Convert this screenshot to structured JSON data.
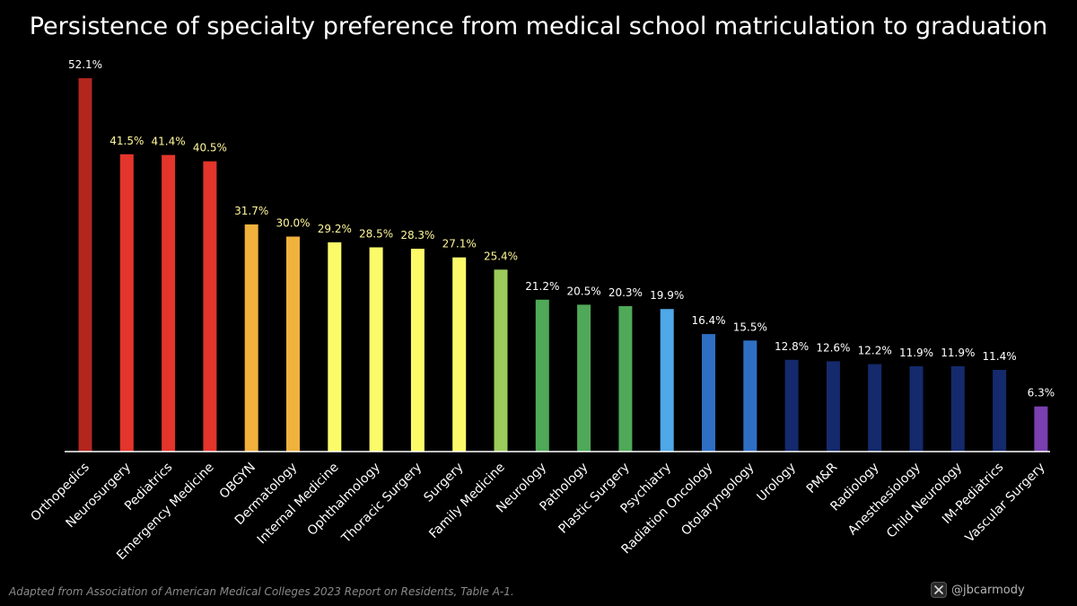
{
  "chart_data": {
    "type": "bar",
    "title": "Persistence of specialty preference from medical school matriculation to graduation",
    "xlabel": "",
    "ylabel": "",
    "ylim": [
      0,
      55
    ],
    "grid": false,
    "legend": "none",
    "categories": [
      "Orthopedics",
      "Neurosurgery",
      "Pediatrics",
      "Emergency Medicine",
      "OBGYN",
      "Dermatology",
      "Internal Medicine",
      "Ophthalmology",
      "Thoracic Surgery",
      "Surgery",
      "Family Medicine",
      "Neurology",
      "Pathology",
      "Plastic Surgery",
      "Psychiatry",
      "Radiation Oncology",
      "Otolaryngology",
      "Urology",
      "PM&R",
      "Radiology",
      "Anesthesiology",
      "Child Neurology",
      "IM-Pediatrics",
      "Vascular Surgery"
    ],
    "values": [
      52.1,
      41.5,
      41.4,
      40.5,
      31.7,
      30.0,
      29.2,
      28.5,
      28.3,
      27.1,
      25.4,
      21.2,
      20.5,
      20.3,
      19.9,
      16.4,
      15.5,
      12.8,
      12.6,
      12.2,
      11.9,
      11.9,
      11.4,
      6.3
    ],
    "value_labels": [
      "52.1%",
      "41.5%",
      "41.4%",
      "40.5%",
      "31.7%",
      "30.0%",
      "29.2%",
      "28.5%",
      "28.3%",
      "27.1%",
      "25.4%",
      "21.2%",
      "20.5%",
      "20.3%",
      "19.9%",
      "16.4%",
      "15.5%",
      "12.8%",
      "12.6%",
      "12.2%",
      "11.9%",
      "11.9%",
      "11.4%",
      "6.3%"
    ],
    "colors": [
      "#b3261e",
      "#e3352b",
      "#e3352b",
      "#e3352b",
      "#f0b13d",
      "#f0b13d",
      "#fbfb6a",
      "#fbfb6a",
      "#fbfb6a",
      "#fbfb6a",
      "#9acb5b",
      "#4fa958",
      "#4fa958",
      "#4fa958",
      "#4fa8e8",
      "#2e6fc4",
      "#2e6fc4",
      "#142a6c",
      "#142a6c",
      "#142a6c",
      "#142a6c",
      "#142a6c",
      "#142a6c",
      "#7a3fb0"
    ],
    "value_label_colors": [
      "#ffffff",
      "#fff79a",
      "#fff79a",
      "#fff79a",
      "#fff79a",
      "#fff79a",
      "#fff79a",
      "#fff79a",
      "#fff79a",
      "#fff79a",
      "#fff79a",
      "#ffffff",
      "#ffffff",
      "#ffffff",
      "#ffffff",
      "#ffffff",
      "#ffffff",
      "#ffffff",
      "#ffffff",
      "#ffffff",
      "#ffffff",
      "#ffffff",
      "#ffffff",
      "#ffffff"
    ],
    "background": "#000000"
  },
  "footer": {
    "source": "Adapted from Association of American Medical Colleges 2023 Report on Residents, Table A-1.",
    "handle": "@jbcarmody",
    "icon": "x-logo-icon"
  }
}
